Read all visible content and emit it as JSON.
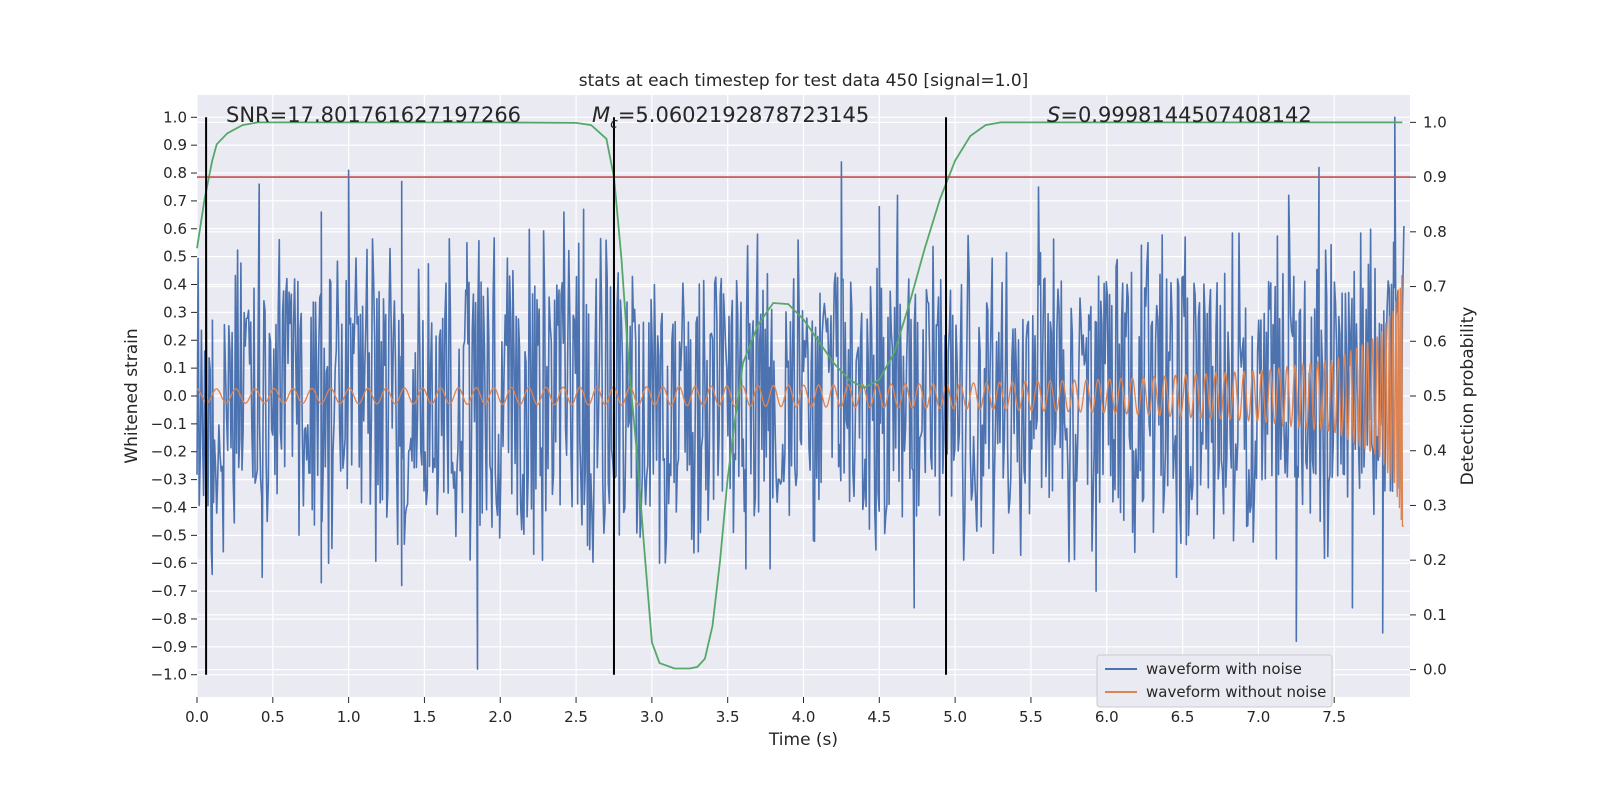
{
  "chart_data": {
    "type": "line",
    "title": "stats at each timestep for test data 450 [signal=1.0]",
    "xlabel": "Time (s)",
    "ylabel": "Whitened strain",
    "y2label": "Detection probability",
    "xlim": [
      0.0,
      8.0
    ],
    "ylim": [
      -1.08,
      1.08
    ],
    "y2lim": [
      -0.05,
      1.05
    ],
    "x_ticks": [
      0.0,
      0.5,
      1.0,
      1.5,
      2.0,
      2.5,
      3.0,
      3.5,
      4.0,
      4.5,
      5.0,
      5.5,
      6.0,
      6.5,
      7.0,
      7.5
    ],
    "x_tick_labels": [
      "0.0",
      "0.5",
      "1.0",
      "1.5",
      "2.0",
      "2.5",
      "3.0",
      "3.5",
      "4.0",
      "4.5",
      "5.0",
      "5.5",
      "6.0",
      "6.5",
      "7.0",
      "7.5"
    ],
    "y_ticks": [
      1.0,
      0.9,
      0.8,
      0.7,
      0.6,
      0.5,
      0.4,
      0.3,
      0.2,
      0.1,
      0.0,
      -0.1,
      -0.2,
      -0.3,
      -0.4,
      -0.5,
      -0.6,
      -0.7,
      -0.8,
      -0.9,
      -1.0
    ],
    "y_tick_labels": [
      "1.0",
      "0.9",
      "0.8",
      "0.7",
      "0.6",
      "0.5",
      "0.4",
      "0.3",
      "0.2",
      "0.1",
      "0.0",
      "−0.1",
      "−0.2",
      "−0.3",
      "−0.4",
      "−0.5",
      "−0.6",
      "−0.7",
      "−0.8",
      "−0.9",
      "−1.0"
    ],
    "y2_ticks": [
      1.0,
      0.9,
      0.8,
      0.7,
      0.6,
      0.5,
      0.4,
      0.3,
      0.2,
      0.1,
      0.0
    ],
    "y2_tick_labels": [
      "1.0",
      "0.9",
      "0.8",
      "0.7",
      "0.6",
      "0.5",
      "0.4",
      "0.3",
      "0.2",
      "0.1",
      "0.0"
    ],
    "grid": true,
    "background": "#eaeaf2",
    "annotations": {
      "snr": "SNR=17.801761627197266",
      "mc_symbol": "M",
      "mc_sub": "c",
      "mc_value": "=5.0602192878723145",
      "s_symbol": "S",
      "s_value": "=0.9998144507408142"
    },
    "threshold": {
      "y2": 0.9,
      "color": "#c44e52"
    },
    "vertical_markers_x": [
      0.06,
      2.75,
      4.94
    ],
    "noisy_waveform": {
      "name": "waveform with noise",
      "color": "#4c72b0",
      "t_start": 0.0,
      "t_end": 7.95,
      "samples": 1100,
      "noise_amplitude": 0.18,
      "spikes": [
        {
          "x": 0.06,
          "y": 0.7
        },
        {
          "x": 0.06,
          "y": -0.55
        },
        {
          "x": 0.1,
          "y": -0.64
        },
        {
          "x": 0.41,
          "y": 0.76
        },
        {
          "x": 0.43,
          "y": -0.65
        },
        {
          "x": 0.82,
          "y": 0.66
        },
        {
          "x": 0.82,
          "y": -0.67
        },
        {
          "x": 1.0,
          "y": 0.81
        },
        {
          "x": 1.35,
          "y": 0.77
        },
        {
          "x": 1.35,
          "y": -0.68
        },
        {
          "x": 1.85,
          "y": -0.98
        },
        {
          "x": 1.78,
          "y": 0.55
        },
        {
          "x": 2.42,
          "y": 0.66
        },
        {
          "x": 2.55,
          "y": 0.67
        },
        {
          "x": 3.05,
          "y": -0.6
        },
        {
          "x": 3.62,
          "y": -0.62
        },
        {
          "x": 3.78,
          "y": -0.62
        },
        {
          "x": 4.25,
          "y": 0.84
        },
        {
          "x": 4.5,
          "y": 0.68
        },
        {
          "x": 4.73,
          "y": -0.76
        },
        {
          "x": 4.62,
          "y": 0.72
        },
        {
          "x": 5.55,
          "y": 0.75
        },
        {
          "x": 5.93,
          "y": -0.7
        },
        {
          "x": 6.46,
          "y": -0.65
        },
        {
          "x": 7.2,
          "y": 0.72
        },
        {
          "x": 7.25,
          "y": -0.88
        },
        {
          "x": 7.4,
          "y": 0.82
        },
        {
          "x": 7.62,
          "y": -0.76
        },
        {
          "x": 7.82,
          "y": -0.85
        },
        {
          "x": 7.9,
          "y": 1.0
        },
        {
          "x": 7.96,
          "y": 0.61
        }
      ]
    },
    "clean_waveform": {
      "name": "waveform without noise",
      "color": "#dd8452",
      "t_start": 0.0,
      "t_end": 7.96,
      "t_merger": 7.95,
      "envelope": [
        {
          "x": 0.0,
          "y": 0.025
        },
        {
          "x": 3.0,
          "y": 0.033
        },
        {
          "x": 5.0,
          "y": 0.045
        },
        {
          "x": 6.0,
          "y": 0.06
        },
        {
          "x": 7.0,
          "y": 0.09
        },
        {
          "x": 7.5,
          "y": 0.13
        },
        {
          "x": 7.8,
          "y": 0.22
        },
        {
          "x": 7.9,
          "y": 0.33
        },
        {
          "x": 7.95,
          "y": 0.47
        }
      ]
    },
    "detection_probability": {
      "name": "Detection probability",
      "color": "#55a868",
      "x": [
        0.0,
        0.05,
        0.1,
        0.13,
        0.2,
        0.3,
        0.4,
        0.5,
        1.0,
        2.0,
        2.5,
        2.6,
        2.7,
        2.75,
        2.8,
        2.85,
        2.9,
        2.95,
        3.0,
        3.05,
        3.15,
        3.25,
        3.3,
        3.35,
        3.4,
        3.45,
        3.5,
        3.55,
        3.6,
        3.7,
        3.8,
        3.9,
        4.0,
        4.1,
        4.2,
        4.3,
        4.4,
        4.5,
        4.6,
        4.7,
        4.8,
        4.9,
        5.0,
        5.1,
        5.2,
        5.3,
        6.0,
        7.0,
        7.95
      ],
      "y": [
        0.77,
        0.86,
        0.93,
        0.96,
        0.98,
        0.995,
        1.0,
        1.0,
        1.0,
        1.0,
        0.999,
        0.995,
        0.97,
        0.9,
        0.75,
        0.55,
        0.4,
        0.22,
        0.05,
        0.012,
        0.002,
        0.002,
        0.005,
        0.02,
        0.08,
        0.2,
        0.35,
        0.46,
        0.56,
        0.63,
        0.67,
        0.668,
        0.64,
        0.6,
        0.56,
        0.53,
        0.515,
        0.53,
        0.58,
        0.67,
        0.77,
        0.86,
        0.93,
        0.975,
        0.995,
        1.0,
        1.0,
        1.0,
        1.0
      ]
    },
    "legend": {
      "placement": "lower-right",
      "entries": [
        {
          "label": "waveform with noise",
          "color": "#4c72b0"
        },
        {
          "label": "waveform without noise",
          "color": "#dd8452"
        }
      ]
    }
  }
}
